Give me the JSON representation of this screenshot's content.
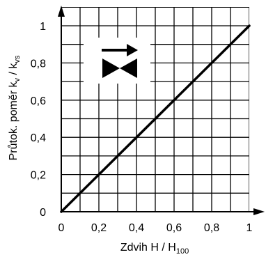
{
  "chart_data": {
    "type": "line",
    "xlabel": "Zdvih H / H",
    "xlabel_sub": "100",
    "ylabel": "Průtok. poměr k",
    "ylabel_sub1": "v",
    "ylabel_mid": " / k",
    "ylabel_sub2": "vs",
    "xlim": [
      0,
      1
    ],
    "ylim": [
      0,
      1
    ],
    "grid": true,
    "x_ticks": [
      "0",
      "0,2",
      "0,4",
      "0,6",
      "0,8",
      "1"
    ],
    "y_ticks": [
      "0",
      "0,2",
      "0,4",
      "0,6",
      "0,8",
      "1"
    ],
    "series": [
      {
        "x": [
          0,
          1
        ],
        "y": [
          0,
          1
        ]
      }
    ]
  },
  "figure_code": "4030D18",
  "icons": {
    "flow_arrow": "flow-direction-arrow-icon",
    "valve": "two-way-valve-icon"
  }
}
